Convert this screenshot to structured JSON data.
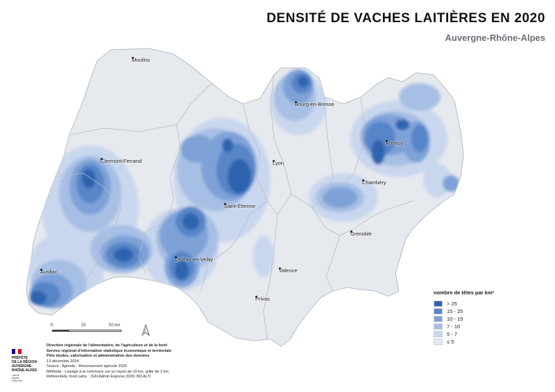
{
  "header": {
    "title": "DENSITÉ DE VACHES LAITIÈRES EN 2020",
    "subtitle": "Auvergne-Rhône-Alpes"
  },
  "map": {
    "region_fill": "#e6e9ee",
    "border_color": "#b7bcc6",
    "cities": [
      {
        "name": "Moulins"
      },
      {
        "name": "Bourg-en-Bresse"
      },
      {
        "name": "Clermont-Ferrand"
      },
      {
        "name": "Lyon"
      },
      {
        "name": "Annecy"
      },
      {
        "name": "Chambéry"
      },
      {
        "name": "Saint-Étienne"
      },
      {
        "name": "Grenoble"
      },
      {
        "name": "Le Puy-en-Velay"
      },
      {
        "name": "Aurillac"
      },
      {
        "name": "Valence"
      },
      {
        "name": "Privas"
      }
    ]
  },
  "legend": {
    "title": "nombre de têtes par km²",
    "classes": [
      {
        "label": "> 25",
        "color": "#2f63ae"
      },
      {
        "label": "15 - 25",
        "color": "#5685c8"
      },
      {
        "label": "10 - 15",
        "color": "#7ea2d8"
      },
      {
        "label": "7 - 10",
        "color": "#a7bfe4"
      },
      {
        "label": "5 - 7",
        "color": "#c9d7ee"
      },
      {
        "label": "≤ 5",
        "color": "#e6e9ee"
      }
    ]
  },
  "scale": {
    "labels": [
      "0",
      "25",
      "50 km"
    ]
  },
  "footer": {
    "line1": "Direction régionale de l'alimentation, de l'agriculture et de la forêt",
    "line2": "Service régional d'information statistique économique et territoriale",
    "line3": "Pôle études, valorisation et administration des données",
    "date": "13 décembre 2024",
    "source": "Source : Agreste - Recensement agricole 2020",
    "method": "Méthode : Lissage à la commune sur un rayon de 10 km, grille de 1 km",
    "refs": "Référentiels, fond carto. : IGN Admin Express 2020, BD ALTI"
  },
  "logo": {
    "line1": "PRÉFÈTE",
    "line2": "DE LA RÉGION",
    "line3": "AUVERGNE-",
    "line4": "RHÔNE-ALPES",
    "motto1": "Liberté",
    "motto2": "Égalité",
    "motto3": "Fraternité",
    "flag_colors": [
      "#000091",
      "#ffffff",
      "#e1000f"
    ]
  }
}
